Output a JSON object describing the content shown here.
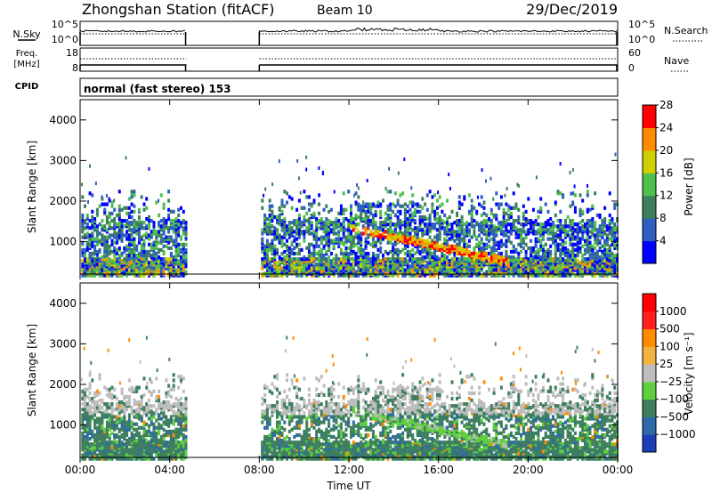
{
  "header": {
    "station": "Zhongshan Station (fitACF)",
    "beam": "Beam 10",
    "date": "29/Dec/2019"
  },
  "top_panels": {
    "nsky_label": "N.Sky",
    "nsky_ticks": [
      "10^5",
      "10^0"
    ],
    "nsearch_label": "N.Search",
    "nsearch_ticks": [
      "10^5",
      "10^0"
    ],
    "freq_label_1": "Freq.",
    "freq_label_2": "[MHz]",
    "freq_ticks": [
      "18",
      "8"
    ],
    "nave_label": "Nave",
    "nave_ticks": [
      "60",
      "0"
    ],
    "cpid_label": "CPID",
    "cpid_text": "normal (fast stereo) 153"
  },
  "chart_data": [
    {
      "type": "heatmap",
      "name": "power",
      "ylabel": "Slant Range [km]",
      "yticks": [
        "1000",
        "2000",
        "3000",
        "4000"
      ],
      "ylim": [
        200,
        4500
      ],
      "colorbar_label": "Power [dB]",
      "colorbar_ticks": [
        "4",
        "8",
        "12",
        "16",
        "20",
        "24",
        "28"
      ],
      "colorbar_colors": [
        "#0000ff",
        "#2f5fc0",
        "#3f7f5f",
        "#4fbf4f",
        "#d0d000",
        "#ff8c00",
        "#ff0000"
      ],
      "data_gaps_ut": [
        [
          4.75,
          8.0
        ]
      ]
    },
    {
      "type": "heatmap",
      "name": "velocity",
      "ylabel": "Slant Range [km]",
      "yticks": [
        "1000",
        "2000",
        "3000",
        "4000"
      ],
      "ylim": [
        200,
        4500
      ],
      "colorbar_label": "Velocity [m s⁻¹]",
      "colorbar_ticks": [
        "1000",
        "500",
        "100",
        "25",
        "−25",
        "−100",
        "−500",
        "−1000"
      ],
      "colorbar_colors": [
        "#1c3fb8",
        "#2d6aa8",
        "#3f7f5f",
        "#5fcf3f",
        "#bdbdbd",
        "#f2b340",
        "#ff8c00",
        "#ff2020",
        "#ff0000"
      ],
      "data_gaps_ut": [
        [
          4.75,
          8.0
        ]
      ]
    }
  ],
  "xaxis": {
    "ticks": [
      "00:00",
      "04:00",
      "08:00",
      "12:00",
      "16:00",
      "20:00",
      "00:00"
    ],
    "label": "Time UT",
    "range_hours": [
      0,
      24
    ]
  }
}
